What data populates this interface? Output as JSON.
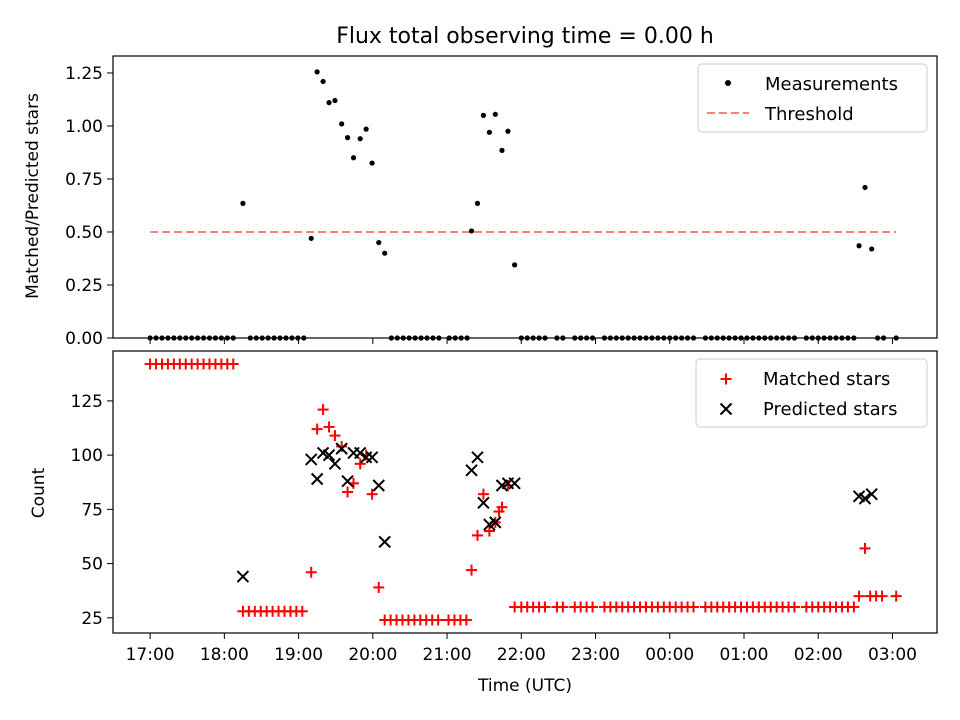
{
  "figure": {
    "title": "Flux total observing time = 0.00 h"
  },
  "colors": {
    "matched": "#ff0000",
    "predicted": "#000000",
    "measurement": "#000000",
    "threshold": "#ff7f7f"
  },
  "chart_data": [
    {
      "type": "scatter",
      "panel": "top",
      "title": "Flux total observing time = 0.00 h",
      "xlabel": "",
      "ylabel": "Matched/Predicted stars",
      "xlim": [
        -0.5,
        10.6
      ],
      "ylim": [
        0,
        1.33
      ],
      "yticks": [
        0,
        0.25,
        0.5,
        0.75,
        1.0,
        1.25
      ],
      "ytick_labels": [
        "0.00",
        "0.25",
        "0.50",
        "0.75",
        "1.00",
        "1.25"
      ],
      "legend_position": "top-right",
      "legend": [
        "Measurements",
        "Threshold"
      ],
      "threshold": {
        "name": "Threshold",
        "value": 0.5,
        "x_range": [
          0,
          10.05
        ]
      },
      "series": [
        {
          "name": "Measurements",
          "marker": "dot",
          "points": [
            [
              0.0,
              0
            ],
            [
              0.08,
              0
            ],
            [
              0.16,
              0
            ],
            [
              0.24,
              0
            ],
            [
              0.32,
              0
            ],
            [
              0.4,
              0
            ],
            [
              0.48,
              0
            ],
            [
              0.56,
              0
            ],
            [
              0.64,
              0
            ],
            [
              0.72,
              0
            ],
            [
              0.8,
              0
            ],
            [
              0.88,
              0
            ],
            [
              0.96,
              0
            ],
            [
              1.04,
              0
            ],
            [
              1.12,
              0
            ],
            [
              1.25,
              0.635
            ],
            [
              1.35,
              0
            ],
            [
              1.43,
              0
            ],
            [
              1.51,
              0
            ],
            [
              1.59,
              0
            ],
            [
              1.67,
              0
            ],
            [
              1.75,
              0
            ],
            [
              1.83,
              0
            ],
            [
              1.91,
              0
            ],
            [
              1.99,
              0
            ],
            [
              2.07,
              0
            ],
            [
              2.17,
              0.47
            ],
            [
              2.25,
              1.255
            ],
            [
              2.33,
              1.21
            ],
            [
              2.41,
              1.11
            ],
            [
              2.49,
              1.12
            ],
            [
              2.58,
              1.01
            ],
            [
              2.66,
              0.945
            ],
            [
              2.74,
              0.85
            ],
            [
              2.83,
              0.94
            ],
            [
              2.91,
              0.985
            ],
            [
              2.99,
              0.825
            ],
            [
              3.08,
              0.45
            ],
            [
              3.16,
              0.4
            ],
            [
              3.25,
              0
            ],
            [
              3.33,
              0
            ],
            [
              3.41,
              0
            ],
            [
              3.49,
              0
            ],
            [
              3.57,
              0
            ],
            [
              3.65,
              0
            ],
            [
              3.73,
              0
            ],
            [
              3.81,
              0
            ],
            [
              3.89,
              0
            ],
            [
              4.03,
              0
            ],
            [
              4.11,
              0
            ],
            [
              4.19,
              0
            ],
            [
              4.27,
              0
            ],
            [
              4.33,
              0.505
            ],
            [
              4.41,
              0.635
            ],
            [
              4.49,
              1.05
            ],
            [
              4.57,
              0.97
            ],
            [
              4.65,
              1.055
            ],
            [
              4.74,
              0.885
            ],
            [
              4.82,
              0.975
            ],
            [
              4.91,
              0.345
            ],
            [
              5.0,
              0
            ],
            [
              5.08,
              0
            ],
            [
              5.16,
              0
            ],
            [
              5.24,
              0
            ],
            [
              5.32,
              0
            ],
            [
              5.48,
              0
            ],
            [
              5.56,
              0
            ],
            [
              5.72,
              0
            ],
            [
              5.8,
              0
            ],
            [
              5.88,
              0
            ],
            [
              5.96,
              0
            ],
            [
              6.12,
              0
            ],
            [
              6.2,
              0
            ],
            [
              6.28,
              0
            ],
            [
              6.36,
              0
            ],
            [
              6.44,
              0
            ],
            [
              6.52,
              0
            ],
            [
              6.6,
              0
            ],
            [
              6.68,
              0
            ],
            [
              6.76,
              0
            ],
            [
              6.84,
              0
            ],
            [
              6.92,
              0
            ],
            [
              7.0,
              0
            ],
            [
              7.08,
              0
            ],
            [
              7.16,
              0
            ],
            [
              7.24,
              0
            ],
            [
              7.32,
              0
            ],
            [
              7.48,
              0
            ],
            [
              7.56,
              0
            ],
            [
              7.64,
              0
            ],
            [
              7.72,
              0
            ],
            [
              7.8,
              0
            ],
            [
              7.88,
              0
            ],
            [
              7.96,
              0
            ],
            [
              8.04,
              0
            ],
            [
              8.12,
              0
            ],
            [
              8.2,
              0
            ],
            [
              8.28,
              0
            ],
            [
              8.36,
              0
            ],
            [
              8.44,
              0
            ],
            [
              8.52,
              0
            ],
            [
              8.6,
              0
            ],
            [
              8.68,
              0
            ],
            [
              8.84,
              0
            ],
            [
              8.92,
              0
            ],
            [
              9.0,
              0
            ],
            [
              9.08,
              0
            ],
            [
              9.16,
              0
            ],
            [
              9.24,
              0
            ],
            [
              9.32,
              0
            ],
            [
              9.4,
              0
            ],
            [
              9.48,
              0
            ],
            [
              9.55,
              0.435
            ],
            [
              9.63,
              0.71
            ],
            [
              9.72,
              0.42
            ],
            [
              9.8,
              0
            ],
            [
              9.88,
              0
            ],
            [
              10.05,
              0
            ]
          ]
        }
      ]
    },
    {
      "type": "scatter",
      "panel": "bottom",
      "xlabel": "Time (UTC)",
      "ylabel": "Count",
      "xlim": [
        -0.5,
        10.6
      ],
      "ylim": [
        18,
        148
      ],
      "xticks": [
        0,
        1,
        2,
        3,
        4,
        5,
        6,
        7,
        8,
        9,
        10
      ],
      "xtick_labels": [
        "17:00",
        "18:00",
        "19:00",
        "20:00",
        "21:00",
        "22:00",
        "23:00",
        "00:00",
        "01:00",
        "02:00",
        "03:00"
      ],
      "yticks": [
        25,
        50,
        75,
        100,
        125
      ],
      "ytick_labels": [
        "25",
        "50",
        "75",
        "100",
        "125"
      ],
      "legend_position": "top-right",
      "legend": [
        "Matched stars",
        "Predicted stars"
      ],
      "series": [
        {
          "name": "Matched stars",
          "marker": "plus",
          "points": [
            [
              0.0,
              142
            ],
            [
              0.08,
              142
            ],
            [
              0.16,
              142
            ],
            [
              0.24,
              142
            ],
            [
              0.32,
              142
            ],
            [
              0.4,
              142
            ],
            [
              0.48,
              142
            ],
            [
              0.56,
              142
            ],
            [
              0.64,
              142
            ],
            [
              0.72,
              142
            ],
            [
              0.8,
              142
            ],
            [
              0.88,
              142
            ],
            [
              0.96,
              142
            ],
            [
              1.04,
              142
            ],
            [
              1.12,
              142
            ],
            [
              1.25,
              28
            ],
            [
              1.33,
              28
            ],
            [
              1.41,
              28
            ],
            [
              1.49,
              28
            ],
            [
              1.57,
              28
            ],
            [
              1.65,
              28
            ],
            [
              1.73,
              28
            ],
            [
              1.81,
              28
            ],
            [
              1.89,
              28
            ],
            [
              1.97,
              28
            ],
            [
              2.05,
              28
            ],
            [
              2.17,
              46
            ],
            [
              2.25,
              112
            ],
            [
              2.33,
              121
            ],
            [
              2.41,
              113
            ],
            [
              2.49,
              109
            ],
            [
              2.58,
              104
            ],
            [
              2.66,
              83
            ],
            [
              2.74,
              87
            ],
            [
              2.83,
              96
            ],
            [
              2.91,
              100
            ],
            [
              2.99,
              82
            ],
            [
              3.08,
              39
            ],
            [
              3.16,
              24
            ],
            [
              3.24,
              24
            ],
            [
              3.32,
              24
            ],
            [
              3.4,
              24
            ],
            [
              3.48,
              24
            ],
            [
              3.56,
              24
            ],
            [
              3.64,
              24
            ],
            [
              3.72,
              24
            ],
            [
              3.8,
              24
            ],
            [
              3.88,
              24
            ],
            [
              4.02,
              24
            ],
            [
              4.1,
              24
            ],
            [
              4.18,
              24
            ],
            [
              4.26,
              24
            ],
            [
              4.33,
              47
            ],
            [
              4.41,
              63
            ],
            [
              4.49,
              82
            ],
            [
              4.57,
              65
            ],
            [
              4.65,
              69
            ],
            [
              4.7,
              74
            ],
            [
              4.74,
              76
            ],
            [
              4.82,
              86
            ],
            [
              4.91,
              30
            ],
            [
              5.0,
              30
            ],
            [
              5.08,
              30
            ],
            [
              5.16,
              30
            ],
            [
              5.24,
              30
            ],
            [
              5.32,
              30
            ],
            [
              5.48,
              30
            ],
            [
              5.56,
              30
            ],
            [
              5.72,
              30
            ],
            [
              5.8,
              30
            ],
            [
              5.88,
              30
            ],
            [
              5.96,
              30
            ],
            [
              6.12,
              30
            ],
            [
              6.2,
              30
            ],
            [
              6.28,
              30
            ],
            [
              6.36,
              30
            ],
            [
              6.44,
              30
            ],
            [
              6.52,
              30
            ],
            [
              6.6,
              30
            ],
            [
              6.68,
              30
            ],
            [
              6.76,
              30
            ],
            [
              6.84,
              30
            ],
            [
              6.92,
              30
            ],
            [
              7.0,
              30
            ],
            [
              7.08,
              30
            ],
            [
              7.16,
              30
            ],
            [
              7.24,
              30
            ],
            [
              7.32,
              30
            ],
            [
              7.48,
              30
            ],
            [
              7.56,
              30
            ],
            [
              7.64,
              30
            ],
            [
              7.72,
              30
            ],
            [
              7.8,
              30
            ],
            [
              7.88,
              30
            ],
            [
              7.96,
              30
            ],
            [
              8.04,
              30
            ],
            [
              8.12,
              30
            ],
            [
              8.2,
              30
            ],
            [
              8.28,
              30
            ],
            [
              8.36,
              30
            ],
            [
              8.44,
              30
            ],
            [
              8.52,
              30
            ],
            [
              8.6,
              30
            ],
            [
              8.68,
              30
            ],
            [
              8.84,
              30
            ],
            [
              8.92,
              30
            ],
            [
              9.0,
              30
            ],
            [
              9.08,
              30
            ],
            [
              9.16,
              30
            ],
            [
              9.24,
              30
            ],
            [
              9.32,
              30
            ],
            [
              9.4,
              30
            ],
            [
              9.48,
              30
            ],
            [
              9.55,
              35
            ],
            [
              9.63,
              57
            ],
            [
              9.7,
              35
            ],
            [
              9.78,
              35
            ],
            [
              9.86,
              35
            ],
            [
              10.05,
              35
            ]
          ]
        },
        {
          "name": "Predicted stars",
          "marker": "x",
          "points": [
            [
              1.25,
              44
            ],
            [
              2.17,
              98
            ],
            [
              2.25,
              89
            ],
            [
              2.33,
              101
            ],
            [
              2.41,
              100
            ],
            [
              2.49,
              96
            ],
            [
              2.58,
              103
            ],
            [
              2.66,
              88
            ],
            [
              2.74,
              101
            ],
            [
              2.83,
              101
            ],
            [
              2.91,
              99
            ],
            [
              2.99,
              99
            ],
            [
              3.08,
              86
            ],
            [
              3.16,
              60
            ],
            [
              4.33,
              93
            ],
            [
              4.41,
              99
            ],
            [
              4.49,
              78
            ],
            [
              4.57,
              68
            ],
            [
              4.65,
              69
            ],
            [
              4.74,
              86
            ],
            [
              4.82,
              87
            ],
            [
              4.91,
              87
            ],
            [
              9.55,
              81
            ],
            [
              9.63,
              80
            ],
            [
              9.72,
              82
            ]
          ]
        }
      ]
    }
  ]
}
